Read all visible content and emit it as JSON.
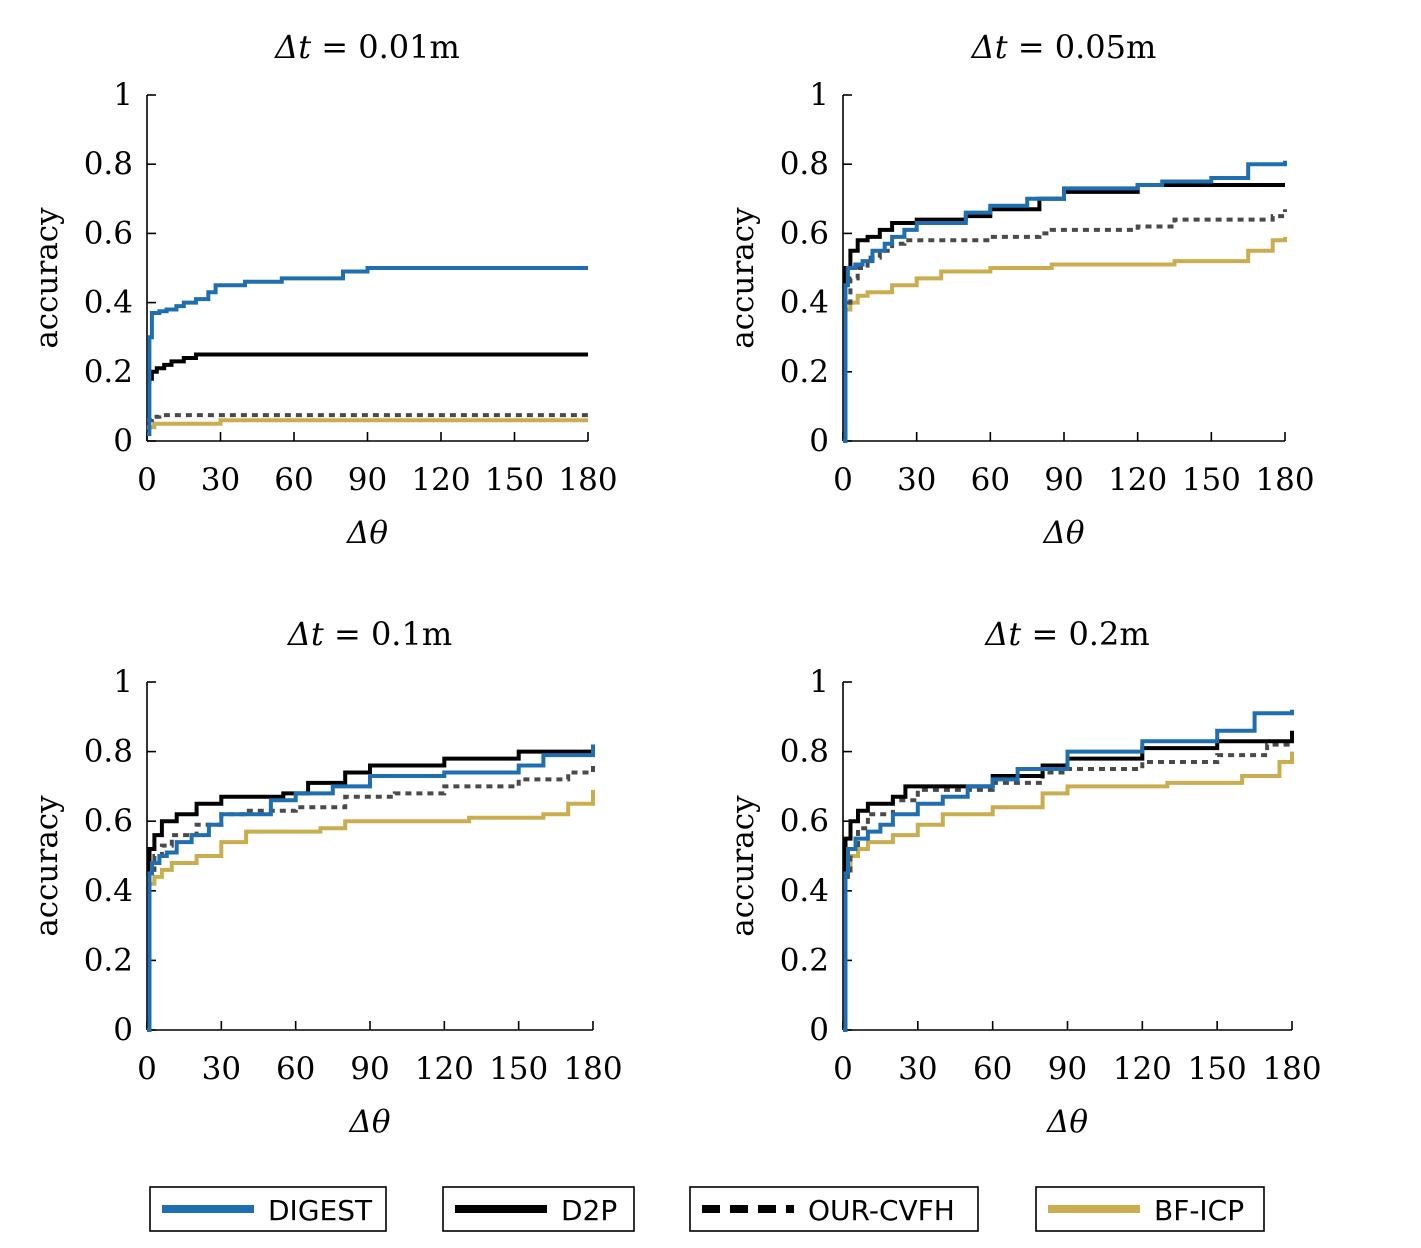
{
  "chart_data": {
    "type": "line",
    "ylabel": "accuracy",
    "xlabel": "Δθ",
    "xlim": [
      0,
      180
    ],
    "ylim": [
      0,
      1
    ],
    "xticks": [
      "0",
      "30",
      "60",
      "90",
      "120",
      "150",
      "180"
    ],
    "yticks": [
      "0",
      "0.2",
      "0.4",
      "0.6",
      "0.8",
      "1"
    ],
    "series_styles": [
      {
        "name": "DIGEST",
        "color": "#1f6fb0",
        "dash": "solid"
      },
      {
        "name": "D2P",
        "color": "#000000",
        "dash": "solid"
      },
      {
        "name": "OUR-CVFH",
        "color": "#4a4a4a",
        "dash": "dashed"
      },
      {
        "name": "BF-ICP",
        "color": "#c9ad4e",
        "dash": "solid"
      }
    ],
    "panels": [
      {
        "title_var": "Δt",
        "title_rest": " = 0.01m",
        "series": [
          {
            "name": "DIGEST",
            "x": [
              0,
              1,
              2,
              3,
              5,
              8,
              12,
              15,
              20,
              25,
              28,
              40,
              55,
              80,
              90,
              180
            ],
            "y": [
              0.02,
              0.3,
              0.37,
              0.37,
              0.375,
              0.38,
              0.39,
              0.4,
              0.41,
              0.43,
              0.45,
              0.46,
              0.47,
              0.49,
              0.5,
              0.5
            ]
          },
          {
            "name": "D2P",
            "x": [
              0,
              1,
              2,
              4,
              7,
              10,
              15,
              20,
              180
            ],
            "y": [
              0.17,
              0.18,
              0.2,
              0.21,
              0.22,
              0.23,
              0.24,
              0.25,
              0.25
            ]
          },
          {
            "name": "OUR-CVFH",
            "x": [
              0,
              2,
              5,
              180
            ],
            "y": [
              0.06,
              0.07,
              0.075,
              0.075
            ]
          },
          {
            "name": "BF-ICP",
            "x": [
              0,
              3,
              30,
              180
            ],
            "y": [
              0.04,
              0.05,
              0.06,
              0.06
            ]
          }
        ]
      },
      {
        "title_var": "Δt",
        "title_rest": " = 0.05m",
        "series": [
          {
            "name": "DIGEST",
            "x": [
              0,
              1,
              2,
              5,
              8,
              12,
              17,
              20,
              25,
              30,
              50,
              60,
              75,
              90,
              120,
              130,
              150,
              165,
              180
            ],
            "y": [
              0,
              0.45,
              0.5,
              0.51,
              0.52,
              0.55,
              0.57,
              0.59,
              0.61,
              0.63,
              0.66,
              0.68,
              0.7,
              0.73,
              0.74,
              0.75,
              0.76,
              0.8,
              0.81
            ]
          },
          {
            "name": "D2P",
            "x": [
              0,
              1,
              3,
              6,
              10,
              15,
              20,
              30,
              50,
              60,
              80,
              90,
              120,
              180
            ],
            "y": [
              0,
              0.5,
              0.55,
              0.58,
              0.59,
              0.61,
              0.63,
              0.64,
              0.65,
              0.67,
              0.7,
              0.72,
              0.74,
              0.74
            ]
          },
          {
            "name": "OUR-CVFH",
            "x": [
              0,
              1,
              3,
              6,
              10,
              15,
              20,
              25,
              60,
              80,
              85,
              120,
              135,
              175,
              180
            ],
            "y": [
              0,
              0.4,
              0.47,
              0.5,
              0.53,
              0.55,
              0.57,
              0.58,
              0.59,
              0.6,
              0.61,
              0.62,
              0.64,
              0.65,
              0.67
            ]
          },
          {
            "name": "BF-ICP",
            "x": [
              0,
              1,
              3,
              6,
              10,
              20,
              30,
              40,
              60,
              85,
              120,
              135,
              165,
              175,
              180
            ],
            "y": [
              0,
              0.38,
              0.4,
              0.42,
              0.43,
              0.45,
              0.47,
              0.49,
              0.5,
              0.51,
              0.51,
              0.52,
              0.55,
              0.58,
              0.59
            ]
          }
        ]
      },
      {
        "title_var": "Δt",
        "title_rest": " = 0.1m",
        "series": [
          {
            "name": "DIGEST",
            "x": [
              0,
              1,
              2,
              5,
              8,
              12,
              18,
              25,
              30,
              50,
              60,
              75,
              90,
              120,
              150,
              160,
              180
            ],
            "y": [
              0,
              0.45,
              0.48,
              0.5,
              0.51,
              0.54,
              0.56,
              0.59,
              0.62,
              0.66,
              0.68,
              0.7,
              0.73,
              0.74,
              0.76,
              0.79,
              0.82
            ]
          },
          {
            "name": "D2P",
            "x": [
              0,
              1,
              3,
              6,
              12,
              20,
              30,
              55,
              65,
              80,
              90,
              120,
              150,
              180
            ],
            "y": [
              0,
              0.52,
              0.56,
              0.6,
              0.62,
              0.65,
              0.67,
              0.68,
              0.71,
              0.74,
              0.76,
              0.78,
              0.8,
              0.82
            ]
          },
          {
            "name": "OUR-CVFH",
            "x": [
              0,
              1,
              3,
              6,
              10,
              20,
              30,
              40,
              60,
              80,
              100,
              120,
              150,
              170,
              180
            ],
            "y": [
              0,
              0.46,
              0.5,
              0.53,
              0.56,
              0.59,
              0.62,
              0.63,
              0.64,
              0.67,
              0.68,
              0.7,
              0.72,
              0.74,
              0.77
            ]
          },
          {
            "name": "BF-ICP",
            "x": [
              0,
              1,
              3,
              6,
              10,
              20,
              30,
              40,
              70,
              80,
              130,
              160,
              170,
              180
            ],
            "y": [
              0,
              0.42,
              0.44,
              0.46,
              0.48,
              0.5,
              0.54,
              0.57,
              0.58,
              0.6,
              0.61,
              0.62,
              0.65,
              0.69
            ]
          }
        ]
      },
      {
        "title_var": "Δt",
        "title_rest": " = 0.2m",
        "series": [
          {
            "name": "DIGEST",
            "x": [
              0,
              1,
              2,
              5,
              10,
              15,
              20,
              30,
              40,
              50,
              60,
              70,
              90,
              120,
              150,
              165,
              180
            ],
            "y": [
              0,
              0.45,
              0.52,
              0.55,
              0.57,
              0.59,
              0.62,
              0.65,
              0.67,
              0.7,
              0.72,
              0.75,
              0.8,
              0.83,
              0.86,
              0.91,
              0.92
            ]
          },
          {
            "name": "D2P",
            "x": [
              0,
              1,
              3,
              6,
              10,
              20,
              25,
              60,
              80,
              90,
              120,
              150,
              180
            ],
            "y": [
              0,
              0.55,
              0.6,
              0.63,
              0.65,
              0.67,
              0.7,
              0.73,
              0.76,
              0.78,
              0.81,
              0.83,
              0.86
            ]
          },
          {
            "name": "OUR-CVFH",
            "x": [
              0,
              1,
              3,
              6,
              10,
              20,
              30,
              60,
              80,
              90,
              120,
              150,
              170,
              180
            ],
            "y": [
              0,
              0.44,
              0.52,
              0.58,
              0.62,
              0.66,
              0.69,
              0.71,
              0.74,
              0.75,
              0.77,
              0.79,
              0.82,
              0.85
            ]
          },
          {
            "name": "BF-ICP",
            "x": [
              0,
              1,
              3,
              6,
              10,
              20,
              30,
              40,
              60,
              80,
              90,
              130,
              160,
              175,
              180
            ],
            "y": [
              0,
              0.47,
              0.5,
              0.52,
              0.54,
              0.56,
              0.59,
              0.62,
              0.64,
              0.68,
              0.7,
              0.71,
              0.73,
              0.77,
              0.8
            ]
          }
        ]
      }
    ]
  },
  "legend": {
    "items": [
      {
        "label": "DIGEST",
        "color": "#1f6fb0",
        "dash": "solid"
      },
      {
        "label": "D2P",
        "color": "#000000",
        "dash": "solid"
      },
      {
        "label": "OUR-CVFH",
        "color": "#000000",
        "dash": "dashed"
      },
      {
        "label": "BF-ICP",
        "color": "#c9ad4e",
        "dash": "solid"
      }
    ]
  }
}
